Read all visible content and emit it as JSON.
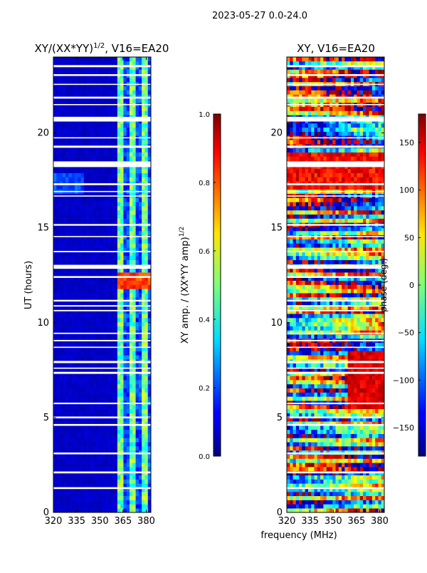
{
  "suptitle": "2023-05-27 0.0-24.0",
  "xlabel": "frequency (MHz)",
  "colors": {
    "white": "#ffffff",
    "frame": "#000000"
  },
  "chart_data": [
    {
      "type": "heatmap",
      "title": "XY/(XX*YY)",
      "title_sup": "1/2",
      "title_suffix": ", V16=EA20",
      "xlabel": "",
      "ylabel": "UT (hours)",
      "xlim": [
        320,
        383
      ],
      "ylim": [
        0,
        24
      ],
      "xticks": [
        320,
        335,
        350,
        365,
        380
      ],
      "yticks": [
        0,
        5,
        10,
        15,
        20
      ],
      "colorbar": {
        "label": "XY amp. / (XX*YY amp)",
        "label_sup": "1/2",
        "range": [
          0.0,
          1.0
        ],
        "ticks": [
          "0.0",
          "0.2",
          "0.4",
          "0.6",
          "0.8",
          "1.0"
        ],
        "colormap": "jet"
      },
      "notes": "mostly low values (~0.05) below 360 MHz; bright bands 360-380 MHz; peak ~0.8 near 12 UT"
    },
    {
      "type": "heatmap",
      "title": "XY, V16=EA20",
      "xlabel": "",
      "ylabel": "",
      "xlim": [
        320,
        383
      ],
      "ylim": [
        0,
        24
      ],
      "xticks": [
        320,
        335,
        350,
        365,
        380
      ],
      "yticks": [
        0,
        5,
        10,
        15,
        20
      ],
      "colorbar": {
        "label": "phase (deg.)",
        "range": [
          -180,
          180
        ],
        "ticks": [
          "150",
          "100",
          "50",
          "0",
          "−50",
          "−100",
          "−150"
        ],
        "tick_values": [
          150,
          100,
          50,
          0,
          -50,
          -100,
          -150
        ],
        "colormap": "jet"
      },
      "notes": "phase varies widely across full range"
    }
  ]
}
